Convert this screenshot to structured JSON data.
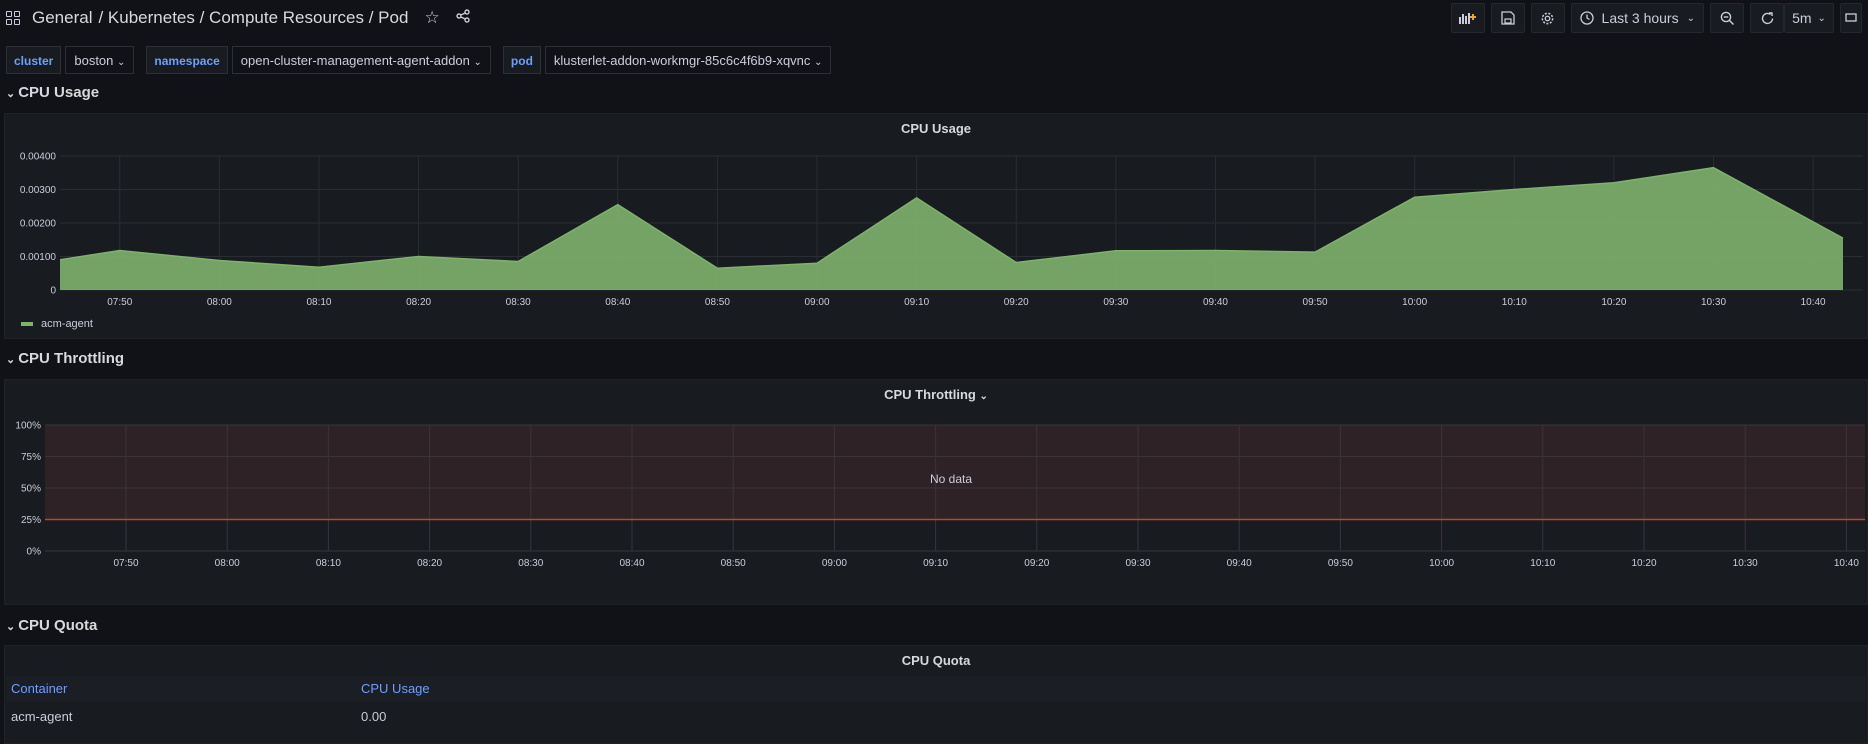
{
  "breadcrumb": {
    "root": "General",
    "path": " / Kubernetes / Compute Resources / Pod"
  },
  "toolbar": {
    "time_range": "Last 3 hours",
    "refresh_interval": "5m"
  },
  "variables": [
    {
      "label": "cluster",
      "value": "boston"
    },
    {
      "label": "namespace",
      "value": "open-cluster-management-agent-addon"
    },
    {
      "label": "pod",
      "value": "klusterlet-addon-workmgr-85c6c4f6b9-xqvnc"
    }
  ],
  "rows": {
    "cpu_usage": "CPU Usage",
    "cpu_throttling": "CPU Throttling",
    "cpu_quota": "CPU Quota"
  },
  "panels": {
    "cpu_usage_title": "CPU Usage",
    "cpu_throttling_title": "CPU Throttling",
    "cpu_quota_title": "CPU Quota",
    "no_data": "No data"
  },
  "colors": {
    "series": "#7eb26d",
    "threshold_line": "#c4422a",
    "threshold_fill": "#2f2226"
  },
  "chart_data": [
    {
      "type": "area",
      "title": "CPU Usage",
      "x_ticks": [
        "07:50",
        "08:00",
        "08:10",
        "08:20",
        "08:30",
        "08:40",
        "08:50",
        "09:00",
        "09:10",
        "09:20",
        "09:30",
        "09:40",
        "09:50",
        "10:00",
        "10:10",
        "10:20",
        "10:30",
        "10:40"
      ],
      "y_ticks": [
        "0",
        "0.00100",
        "0.00200",
        "0.00300",
        "0.00400"
      ],
      "ylim": [
        0,
        0.004
      ],
      "xlim_minutes": [
        -6,
        173
      ],
      "series": [
        {
          "name": "acm-agent",
          "x_minutes": [
            -6,
            0,
            10,
            20,
            30,
            40,
            50,
            60,
            70,
            80,
            90,
            100,
            110,
            120,
            130,
            140,
            150,
            160,
            173
          ],
          "values": [
            0.0009,
            0.00118,
            0.00088,
            0.00068,
            0.001,
            0.00085,
            0.00255,
            0.00065,
            0.0008,
            0.00275,
            0.00082,
            0.00117,
            0.00118,
            0.00113,
            0.00277,
            0.003,
            0.0032,
            0.00365,
            0.00155
          ]
        }
      ],
      "legend": "bottom-left",
      "grid": true
    },
    {
      "type": "line",
      "title": "CPU Throttling",
      "x_ticks": [
        "07:50",
        "08:00",
        "08:10",
        "08:20",
        "08:30",
        "08:40",
        "08:50",
        "09:00",
        "09:10",
        "09:20",
        "09:30",
        "09:40",
        "09:50",
        "10:00",
        "10:10",
        "10:20",
        "10:30",
        "10:40"
      ],
      "y_ticks": [
        "0%",
        "25%",
        "50%",
        "75%",
        "100%"
      ],
      "ylim": [
        0,
        100
      ],
      "threshold": 25,
      "series": [],
      "grid": true
    }
  ],
  "table": {
    "columns": [
      "Container",
      "CPU Usage"
    ],
    "rows": [
      [
        "acm-agent",
        "0.00"
      ]
    ]
  }
}
